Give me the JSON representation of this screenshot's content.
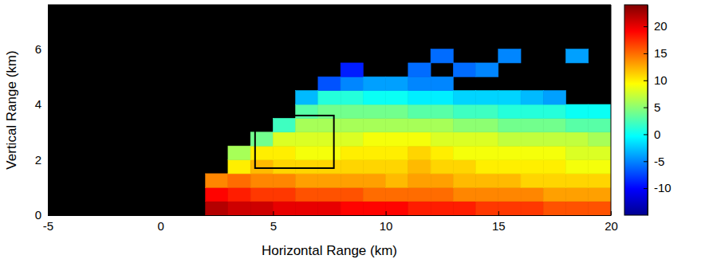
{
  "chart_data": {
    "type": "heatmap",
    "x_label": "Horizontal Range (km)",
    "y_label": "Vertical Range (km)",
    "xlim": [
      -5,
      20
    ],
    "xticks": [
      -5,
      0,
      5,
      10,
      15,
      20
    ],
    "ylim": [
      0,
      7.6
    ],
    "yticks": [
      0,
      2,
      4,
      6
    ],
    "x_edges": [
      2,
      3,
      4,
      5,
      6,
      7,
      8,
      9,
      10,
      11,
      12,
      13,
      14,
      15,
      16,
      17,
      18,
      19,
      20
    ],
    "y_edges": [
      0,
      0.5,
      1,
      1.5,
      2,
      2.5,
      3,
      3.5,
      4,
      4.5,
      5,
      5.5,
      6
    ],
    "cells": [
      [
        22,
        21,
        21,
        20,
        20,
        20,
        19,
        19,
        19,
        18,
        18,
        18,
        17,
        17,
        17,
        16,
        16,
        16
      ],
      [
        19,
        18,
        17,
        17,
        16,
        16,
        16,
        15,
        15,
        15,
        15,
        14,
        14,
        14,
        14,
        13,
        13,
        13
      ],
      [
        14,
        15,
        14,
        14,
        13,
        13,
        13,
        13,
        12,
        13,
        13,
        12,
        12,
        12,
        11,
        11,
        11,
        11
      ],
      [
        null,
        10,
        12,
        11,
        11,
        11,
        11,
        11,
        11,
        12,
        11,
        11,
        10,
        10,
        10,
        10,
        9,
        9
      ],
      [
        null,
        6,
        10,
        10,
        9,
        9,
        10,
        10,
        10,
        11,
        10,
        9,
        9,
        9,
        9,
        9,
        8,
        8
      ],
      [
        null,
        null,
        4,
        8,
        8,
        8,
        8,
        9,
        9,
        9,
        8,
        8,
        8,
        7,
        7,
        7,
        7,
        6
      ],
      [
        null,
        null,
        null,
        2,
        6,
        6,
        6,
        6,
        6,
        6,
        6,
        5,
        5,
        4,
        4,
        4,
        3,
        3
      ],
      [
        null,
        null,
        null,
        null,
        3,
        4,
        4,
        4,
        4,
        3,
        3,
        2,
        2,
        1,
        1,
        1,
        0,
        0
      ],
      [
        null,
        null,
        null,
        null,
        -3,
        1,
        1,
        0,
        0,
        -1,
        -1,
        -2,
        -2,
        -2,
        -3,
        -4,
        null,
        null
      ],
      [
        null,
        null,
        null,
        null,
        null,
        -7,
        -5,
        -4,
        -4,
        -5,
        -5,
        null,
        null,
        null,
        null,
        null,
        null,
        null
      ],
      [
        null,
        null,
        null,
        null,
        null,
        null,
        -9,
        null,
        null,
        -6,
        null,
        -6,
        -5,
        null,
        null,
        null,
        null,
        null
      ],
      [
        null,
        null,
        null,
        null,
        null,
        null,
        null,
        null,
        null,
        null,
        -6,
        null,
        null,
        -5,
        null,
        null,
        -4,
        null
      ]
    ],
    "colorbar_range": [
      -15,
      24
    ],
    "colorbar_ticks": [
      -10,
      -5,
      0,
      5,
      10,
      15,
      20
    ],
    "box": {
      "x": [
        4.2,
        7.7
      ],
      "y": [
        1.7,
        3.6
      ]
    }
  }
}
